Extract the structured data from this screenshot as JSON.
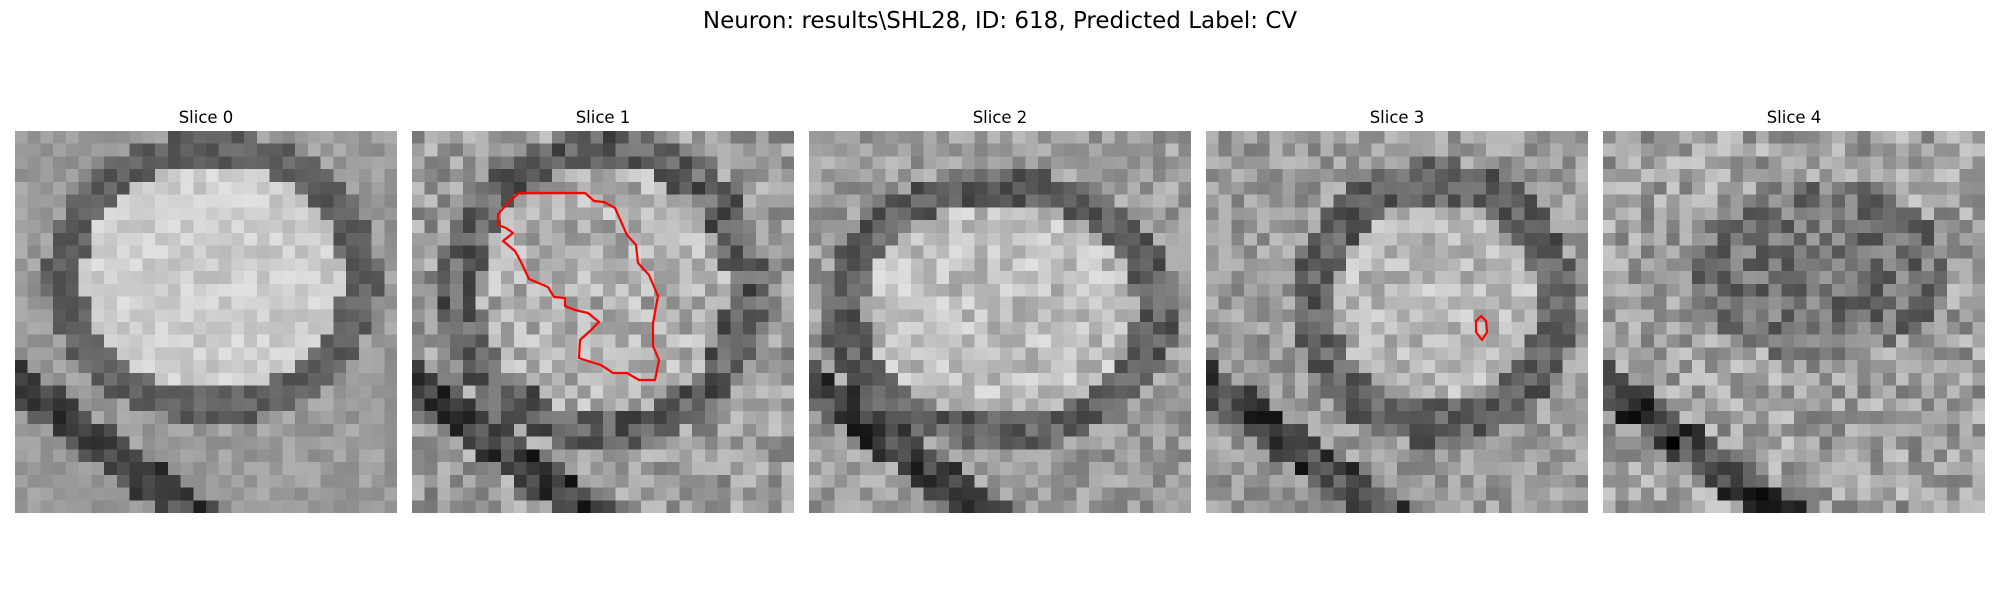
{
  "figure": {
    "title": "Neuron: results\\SHL28, ID: 618, Predicted Label: CV"
  },
  "panels": [
    {
      "title": "Slice 0",
      "has_contour": false
    },
    {
      "title": "Slice 1",
      "has_contour": true
    },
    {
      "title": "Slice 2",
      "has_contour": false
    },
    {
      "title": "Slice 3",
      "has_contour": true
    },
    {
      "title": "Slice 4",
      "has_contour": false
    }
  ],
  "colors": {
    "contour": "#ff0000",
    "background": "#ffffff",
    "colormap": "gray"
  }
}
